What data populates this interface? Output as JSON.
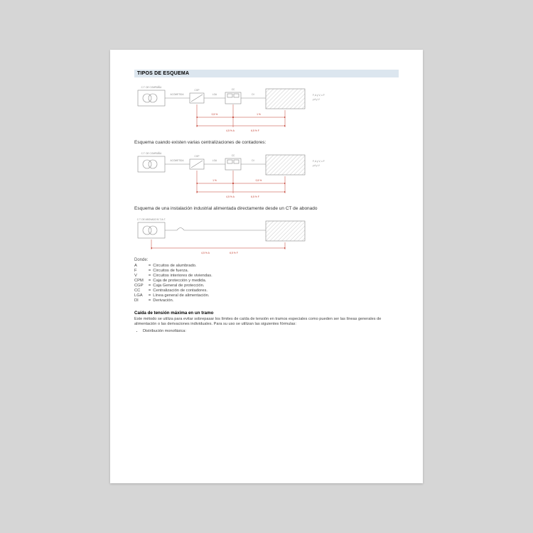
{
  "doc": {
    "header": "TIPOS DE ESQUEMA",
    "caption1": "Esquema cuando existen varias centralizaciones de contadores:",
    "caption2": "Esquema de una instalación industrial alimentada directamente desde un CT de abonado",
    "legend_label": "Donde:",
    "legend": [
      {
        "k": "A",
        "v": "Circuitos de alumbrado."
      },
      {
        "k": "F",
        "v": "Circuitos de fuerza."
      },
      {
        "k": "V",
        "v": "Circuitos interiores de viviendas."
      },
      {
        "k": "CPM",
        "v": "Caja de protección y medida."
      },
      {
        "k": "CGP",
        "v": "Caja General de protección."
      },
      {
        "k": "CC",
        "v": "Centralización de contadores."
      },
      {
        "k": "LGA",
        "v": "Línea general de alimentación."
      },
      {
        "k": "DI",
        "v": "Derivación."
      }
    ],
    "subhead": "Caída de tensión máxima en un tramo",
    "body": "Este método se utiliza para evitar sobrepasar los límites de caída de tensión en tramos especiales como pueden ser las líneas generales de alimentación o las derivaciones individuales. Para su uso se utilizan las siguientes fórmulas:",
    "bullet1": "Distribución monofásica:"
  },
  "diagram_common": {
    "ct_label": "C.T. DE COMPAÑÍA",
    "ct_label3": "C.T. DE ABONADO B.T./A.T.",
    "acometida": "ACOMETIDA",
    "cgp": "CGP",
    "lga": "LGA",
    "cc": "CC",
    "di": "DI",
    "fav": "F, A y V, o F",
    "fav2": "y A y V",
    "dim_05": "0,5 %",
    "dim_1": "1 %",
    "dim_45a": "4,5 % A",
    "dim_65f": "6,5 % F"
  },
  "style": {
    "page_bg": "#ffffff",
    "canvas_bg": "#d6d6d6",
    "header_bg": "#dce6ef",
    "block_stroke": "#888888",
    "dim_color": "#c0392b",
    "text_color": "#444444"
  }
}
